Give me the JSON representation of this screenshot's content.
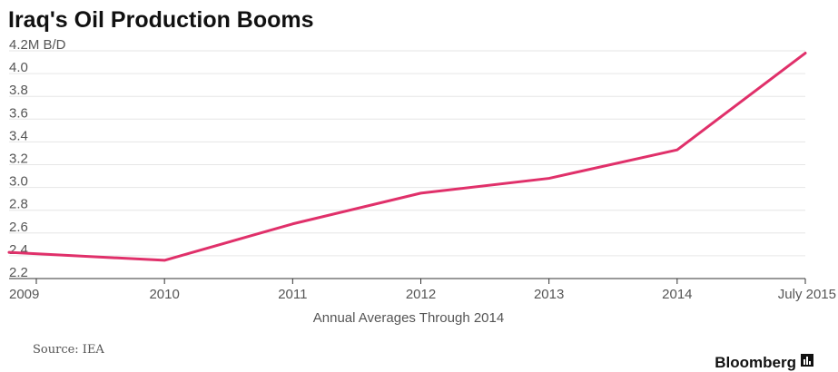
{
  "chart_data": {
    "type": "line",
    "title": "Iraq's Oil Production Booms",
    "y_unit_label": "4.2M B/D",
    "xlabel": "Annual Averages Through 2014",
    "ylabel": "",
    "categories": [
      "2009",
      "2010",
      "2011",
      "2012",
      "2013",
      "2014",
      "July 2015"
    ],
    "y_ticks": [
      "4.2M B/D",
      "4.0",
      "3.8",
      "3.6",
      "3.4",
      "3.2",
      "3.0",
      "2.8",
      "2.6",
      "2.4",
      "2.2"
    ],
    "y_tick_values": [
      4.2,
      4.0,
      3.8,
      3.6,
      3.4,
      3.2,
      3.0,
      2.8,
      2.6,
      2.4,
      2.2
    ],
    "ylim": [
      2.2,
      4.2
    ],
    "grid": true,
    "series": [
      {
        "values": [
          2.43,
          2.36,
          2.68,
          2.95,
          3.08,
          3.33,
          4.18
        ],
        "color": "#e0306a"
      }
    ]
  },
  "footer": {
    "source": "Source: IEA",
    "brand": "Bloomberg"
  },
  "colors": {
    "line": "#e0306a",
    "grid": "#e6e6e6",
    "axis": "#333333"
  }
}
